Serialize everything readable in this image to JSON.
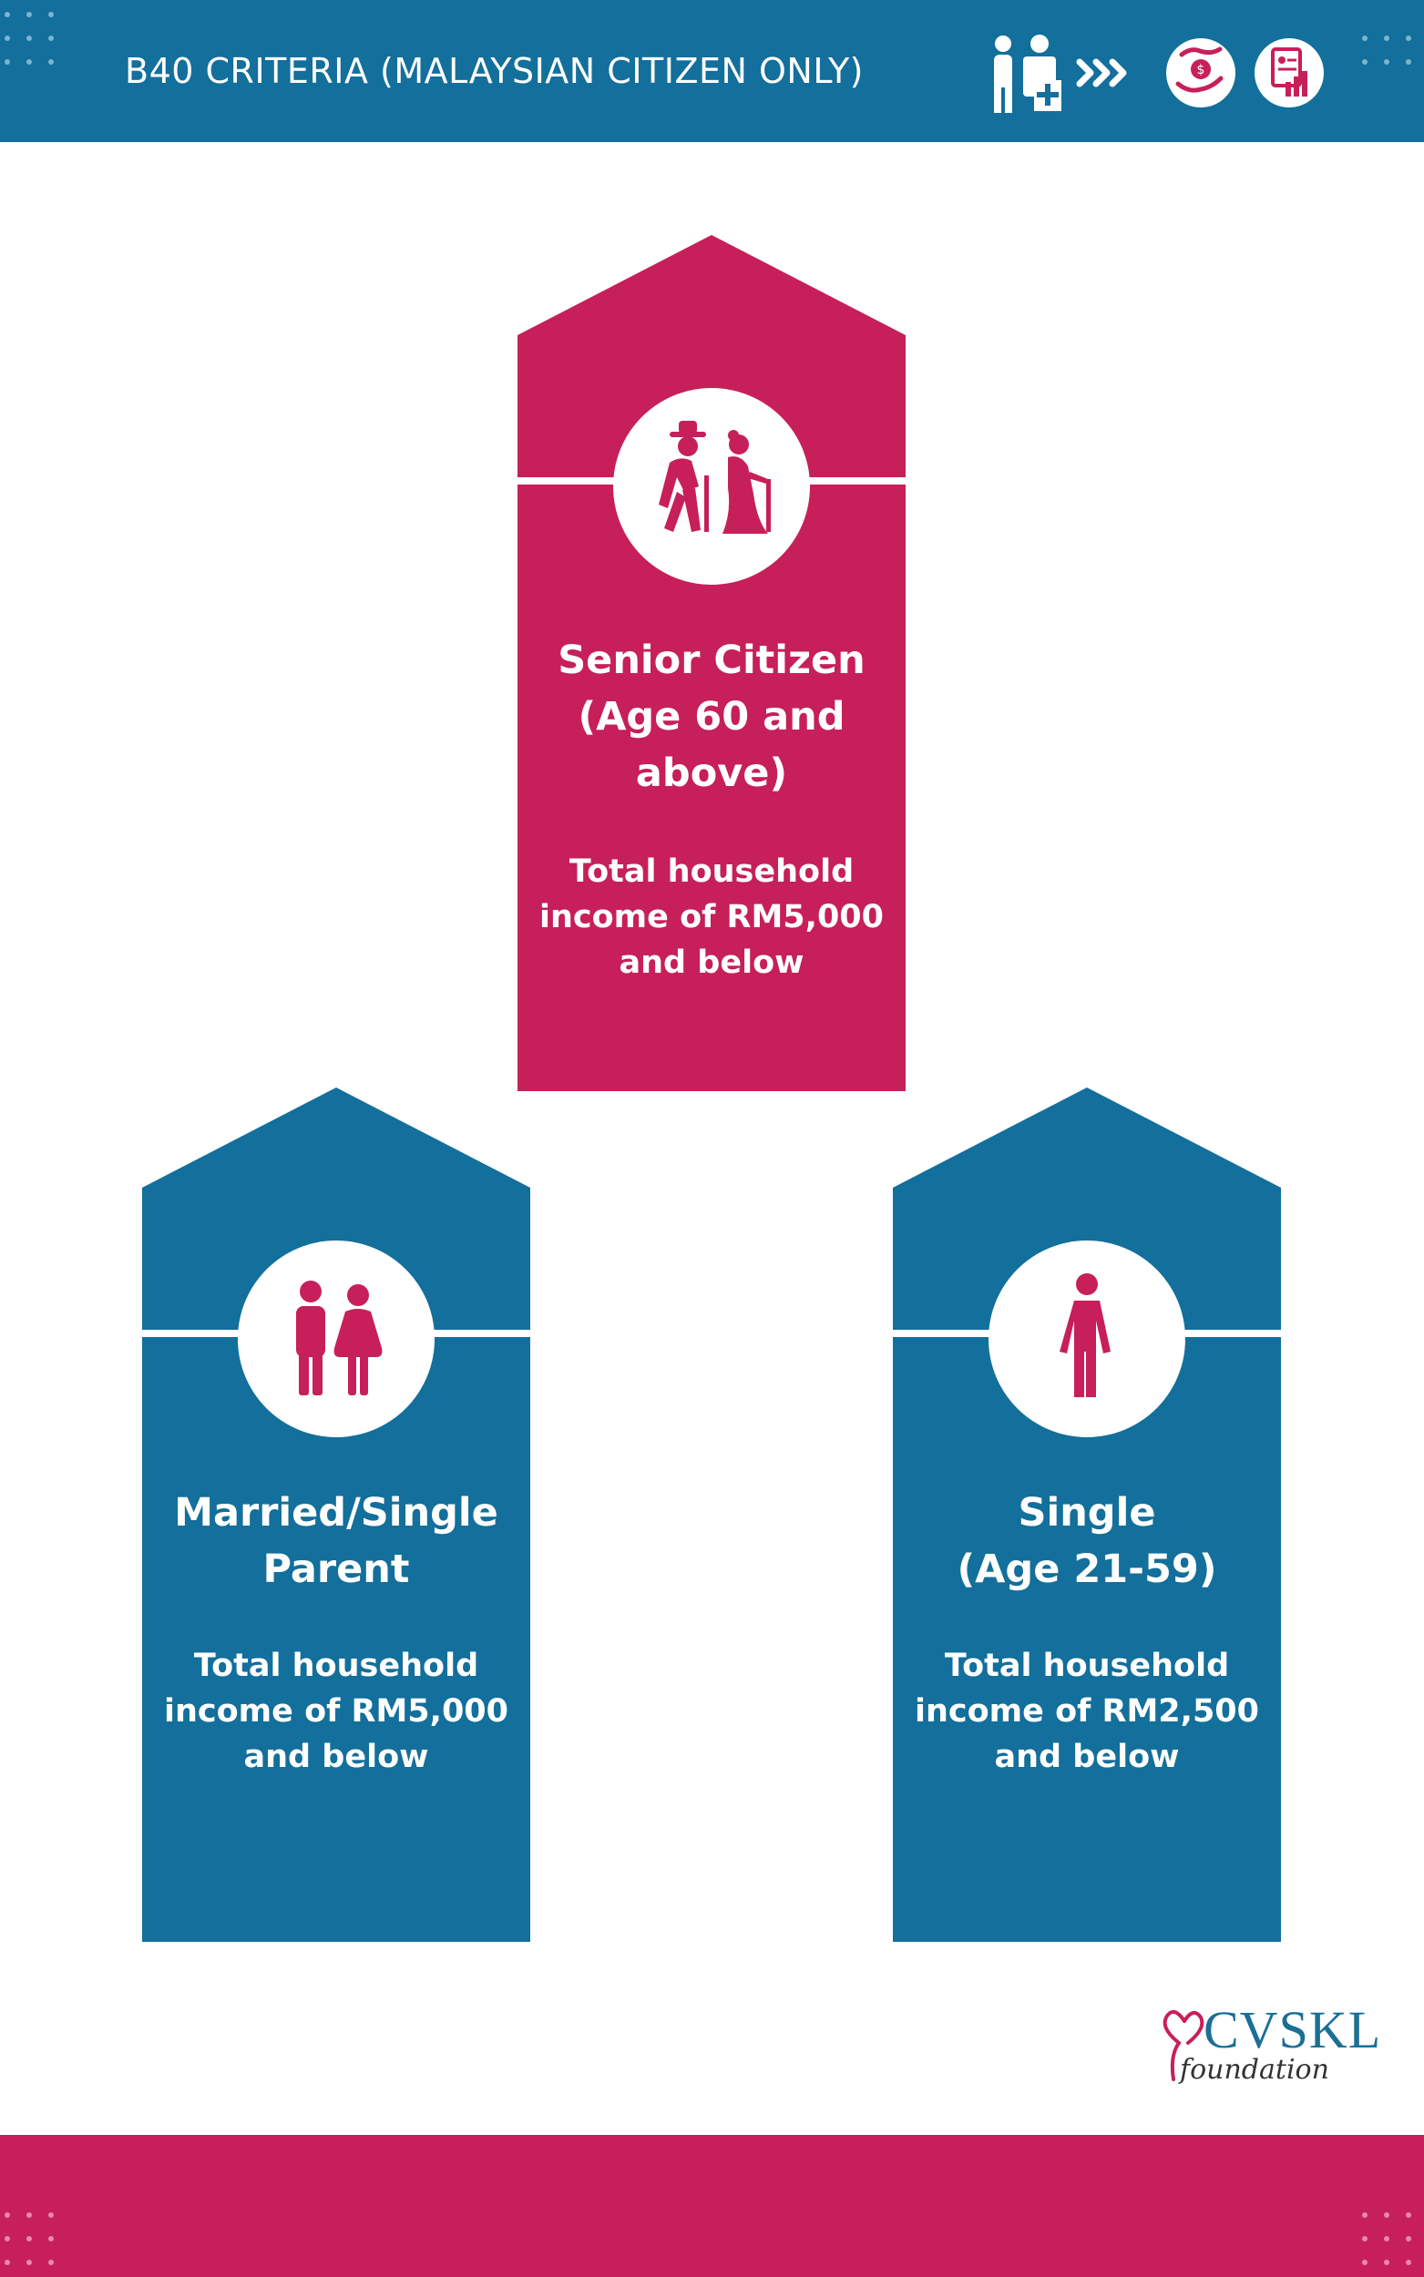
{
  "header": {
    "title": "B40 CRITERIA (MALAYSIAN CITIZEN ONLY)",
    "icons": [
      "caregiver-icon",
      "arrows-icon",
      "money-hand-icon",
      "report-icon"
    ]
  },
  "colors": {
    "blue": "#136f9b",
    "pink": "#c71f5a",
    "white": "#ffffff"
  },
  "cards": [
    {
      "title_lines": [
        "Senior Citizen",
        "(Age 60 and",
        "above)"
      ],
      "desc_lines": [
        "Total household",
        "income of RM5,000",
        "and below"
      ],
      "icon": "elderly-couple-icon",
      "color": "#c71f5a"
    },
    {
      "title_lines": [
        "Married/Single",
        "Parent"
      ],
      "desc_lines": [
        "Total household",
        "income of RM5,000",
        "and below"
      ],
      "icon": "couple-icon",
      "color": "#136f9b"
    },
    {
      "title_lines": [
        "Single",
        "(Age 21-59)"
      ],
      "desc_lines": [
        "Total household",
        "income of RM2,500",
        "and below"
      ],
      "icon": "person-icon",
      "color": "#136f9b"
    }
  ],
  "logo": {
    "name": "CVSKL",
    "sub": "foundation"
  }
}
